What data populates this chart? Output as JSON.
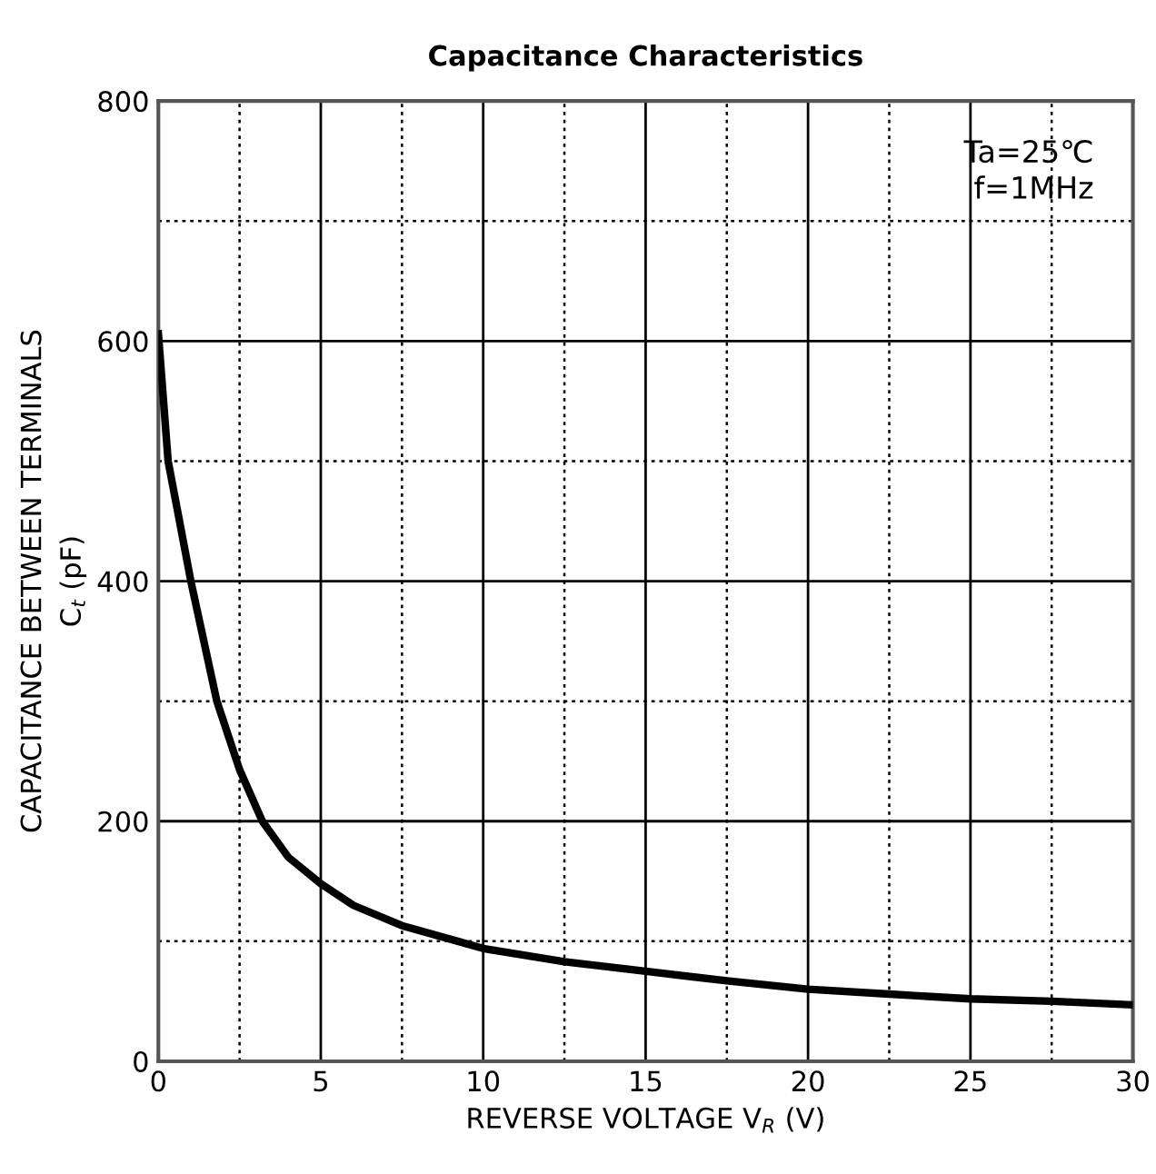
{
  "chart_data": {
    "type": "line",
    "title": "Capacitance Characteristics",
    "xlabel": "REVERSE VOLTAGE V$_{R}$ (V)",
    "ylabel": "CAPACITANCE BETWEEN TERMINALS\nC$_{t}$ (pF)",
    "annotations": [
      "Ta=25℃\nf=1MHz"
    ],
    "x": [
      0,
      0.3,
      1,
      1.8,
      2.5,
      3.2,
      4,
      5,
      6,
      7.5,
      10,
      12.5,
      15,
      17.5,
      20,
      22.5,
      25,
      27.5,
      30
    ],
    "series": [
      {
        "color": "#000000",
        "values": [
          606,
          500,
          400,
          300,
          243,
          200,
          170,
          148,
          130,
          113,
          94,
          83,
          75,
          67,
          60,
          56,
          52,
          50,
          47
        ]
      }
    ],
    "xlim": [
      0,
      30
    ],
    "ylim": [
      0,
      800
    ],
    "xticks": [
      0,
      {
        "value": 2.5,
        "label": null
      },
      5,
      {
        "value": 7.5,
        "label": null
      },
      10,
      {
        "value": 12.5,
        "label": null
      },
      15,
      {
        "value": 17.5,
        "label": null
      },
      20,
      {
        "value": 22.5,
        "label": null
      },
      25,
      {
        "value": 27.5,
        "label": null
      },
      30
    ],
    "yticks": [
      0,
      {
        "value": 100,
        "label": null
      },
      200,
      {
        "value": 300,
        "label": null
      },
      400,
      {
        "value": 500,
        "label": null
      },
      600,
      {
        "value": 700,
        "label": null
      },
      800
    ],
    "grid": true,
    "marker": "none",
    "line_style": "solid",
    "legend": false
  }
}
